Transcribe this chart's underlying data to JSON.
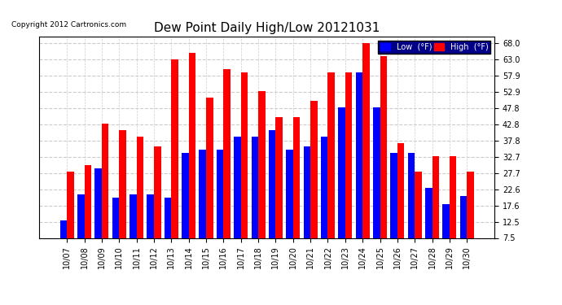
{
  "title": "Dew Point Daily High/Low 20121031",
  "copyright": "Copyright 2012 Cartronics.com",
  "dates": [
    "10/07",
    "10/08",
    "10/09",
    "10/10",
    "10/11",
    "10/12",
    "10/13",
    "10/14",
    "10/15",
    "10/16",
    "10/17",
    "10/18",
    "10/19",
    "10/20",
    "10/21",
    "10/22",
    "10/23",
    "10/24",
    "10/25",
    "10/26",
    "10/27",
    "10/28",
    "10/29",
    "10/30"
  ],
  "low_values": [
    13.0,
    21.0,
    29.0,
    20.0,
    21.0,
    21.0,
    20.0,
    34.0,
    35.0,
    35.0,
    39.0,
    39.0,
    41.0,
    35.0,
    36.0,
    39.0,
    48.0,
    59.0,
    48.0,
    34.0,
    34.0,
    23.0,
    18.0,
    20.5
  ],
  "high_values": [
    28.0,
    30.0,
    43.0,
    41.0,
    39.0,
    36.0,
    63.0,
    65.0,
    51.0,
    60.0,
    59.0,
    53.0,
    45.0,
    45.0,
    50.0,
    59.0,
    59.0,
    68.0,
    64.0,
    37.0,
    28.0,
    33.0,
    33.0,
    28.0
  ],
  "low_color": "#0000ff",
  "high_color": "#ff0000",
  "bg_color": "#ffffff",
  "grid_color": "#cccccc",
  "yticks": [
    7.5,
    12.5,
    17.6,
    22.6,
    27.7,
    32.7,
    37.8,
    42.8,
    47.8,
    52.9,
    57.9,
    63.0,
    68.0
  ],
  "ylim": [
    7.5,
    70.0
  ],
  "title_fontsize": 11,
  "tick_fontsize": 7,
  "legend_low_label": "Low  (°F)",
  "legend_high_label": "High  (°F)"
}
